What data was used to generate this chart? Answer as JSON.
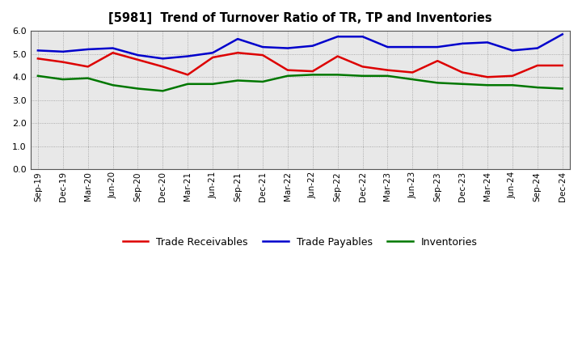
{
  "title": "[5981]  Trend of Turnover Ratio of TR, TP and Inventories",
  "labels": [
    "Sep-19",
    "Dec-19",
    "Mar-20",
    "Jun-20",
    "Sep-20",
    "Dec-20",
    "Mar-21",
    "Jun-21",
    "Sep-21",
    "Dec-21",
    "Mar-22",
    "Jun-22",
    "Sep-22",
    "Dec-22",
    "Mar-23",
    "Jun-23",
    "Sep-23",
    "Dec-23",
    "Mar-24",
    "Jun-24",
    "Sep-24",
    "Dec-24"
  ],
  "trade_receivables": [
    4.8,
    4.65,
    4.45,
    5.05,
    4.75,
    4.45,
    4.1,
    4.85,
    5.05,
    4.95,
    4.3,
    4.25,
    4.9,
    4.45,
    4.3,
    4.2,
    4.7,
    4.2,
    4.0,
    4.05,
    4.5,
    4.5
  ],
  "trade_payables": [
    5.15,
    5.1,
    5.2,
    5.25,
    4.95,
    4.8,
    4.9,
    5.05,
    5.65,
    5.3,
    5.25,
    5.35,
    5.75,
    5.75,
    5.3,
    5.3,
    5.3,
    5.45,
    5.5,
    5.15,
    5.25,
    5.85
  ],
  "inventories": [
    4.05,
    3.9,
    3.95,
    3.65,
    3.5,
    3.4,
    3.7,
    3.7,
    3.85,
    3.8,
    4.05,
    4.1,
    4.1,
    4.05,
    4.05,
    3.9,
    3.75,
    3.7,
    3.65,
    3.65,
    3.55,
    3.5
  ],
  "trade_receivables_color": "#dd0000",
  "trade_payables_color": "#0000cc",
  "inventories_color": "#007700",
  "ylim": [
    0.0,
    6.0
  ],
  "yticks": [
    0.0,
    1.0,
    2.0,
    3.0,
    4.0,
    5.0,
    6.0
  ],
  "background_color": "#ffffff",
  "plot_bg_color": "#e8e8e8",
  "grid_color": "#999999",
  "linewidth": 1.8
}
